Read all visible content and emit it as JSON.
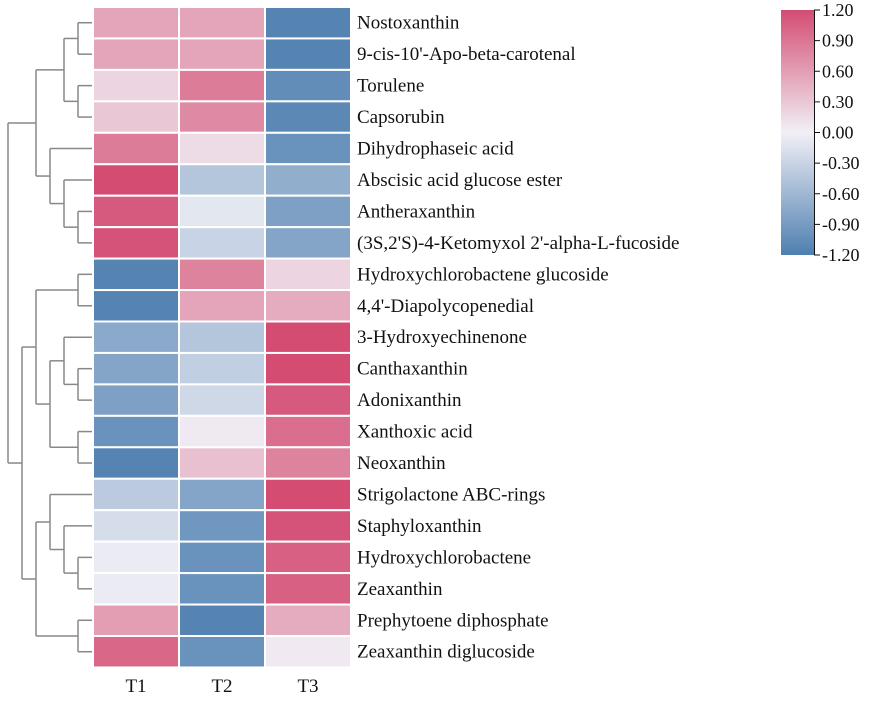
{
  "chart_data": {
    "type": "heatmap",
    "title": "",
    "columns": [
      "T1",
      "T2",
      "T3"
    ],
    "rows": [
      {
        "label": "Nostoxanthin",
        "values": [
          0.55,
          0.55,
          -1.15
        ]
      },
      {
        "label": "9-cis-10'-Apo-beta-carotenal",
        "values": [
          0.55,
          0.55,
          -1.15
        ]
      },
      {
        "label": "Torulene",
        "values": [
          0.2,
          0.85,
          -1.05
        ]
      },
      {
        "label": "Capsorubin",
        "values": [
          0.3,
          0.75,
          -1.1
        ]
      },
      {
        "label": "Dihydrophaseic acid",
        "values": [
          0.85,
          0.15,
          -1.0
        ]
      },
      {
        "label": "Abscisic acid glucose ester",
        "values": [
          1.2,
          -0.45,
          -0.7
        ]
      },
      {
        "label": "Antheraxanthin",
        "values": [
          1.1,
          -0.1,
          -0.85
        ]
      },
      {
        "label": "(3S,2'S)-4-Ketomyxol 2'-alpha-L-fucoside",
        "values": [
          1.15,
          -0.3,
          -0.8
        ]
      },
      {
        "label": "Hydroxychlorobactene glucoside",
        "values": [
          -1.15,
          0.8,
          0.2
        ]
      },
      {
        "label": "4,4'-Diapolycopenedial",
        "values": [
          -1.15,
          0.55,
          0.5
        ]
      },
      {
        "label": "3-Hydroxyechinenone",
        "values": [
          -0.75,
          -0.45,
          1.2
        ]
      },
      {
        "label": "Canthaxanthin",
        "values": [
          -0.8,
          -0.35,
          1.2
        ]
      },
      {
        "label": "Adonixanthin",
        "values": [
          -0.85,
          -0.25,
          1.1
        ]
      },
      {
        "label": "Xanthoxic acid",
        "values": [
          -1.0,
          0.05,
          0.95
        ]
      },
      {
        "label": "Neoxanthin",
        "values": [
          -1.15,
          0.35,
          0.8
        ]
      },
      {
        "label": "Strigolactone ABC-rings",
        "values": [
          -0.4,
          -0.8,
          1.2
        ]
      },
      {
        "label": "Staphyloxanthin",
        "values": [
          -0.2,
          -0.95,
          1.15
        ]
      },
      {
        "label": "Hydroxychlorobactene",
        "values": [
          -0.05,
          -1.0,
          1.05
        ]
      },
      {
        "label": "Zeaxanthin",
        "values": [
          -0.05,
          -1.0,
          1.05
        ]
      },
      {
        "label": "Prephytoene diphosphate",
        "values": [
          0.6,
          -1.15,
          0.5
        ]
      },
      {
        "label": "Zeaxanthin diglucoside",
        "values": [
          1.0,
          -1.0,
          0.05
        ]
      }
    ],
    "colorbar": {
      "min": -1.2,
      "max": 1.2,
      "ticks": [
        "1.20",
        "0.90",
        "0.60",
        "0.30",
        "0.00",
        "-0.30",
        "-0.60",
        "-0.90",
        "-1.20"
      ],
      "low_color": "#4e7fb0",
      "mid_color": "#f1f0f6",
      "high_color": "#d44c72"
    },
    "row_dendrogram": {
      "node": [
        [
          [
            [
              [
                0,
                1
              ],
              [
                2,
                3
              ]
            ],
            [
              4,
              [
                5,
                [
                  6,
                  7
                ]
              ]
            ]
          ],
          [
            [
              [
                8,
                9
              ],
              [
                [
                  10,
                  [
                    11,
                    12
                  ]
                ],
                [
                  13,
                  14
                ]
              ]
            ],
            [
              [
                15,
                [
                  16,
                  [
                    17,
                    18
                  ]
                ]
              ],
              [
                19,
                20
              ]
            ]
          ]
        ]
      ]
    },
    "grid_lines": false,
    "legend_position": "top-right"
  },
  "colors": {
    "dendrogram_line": "#888888",
    "cell_border": "#ffffff"
  }
}
